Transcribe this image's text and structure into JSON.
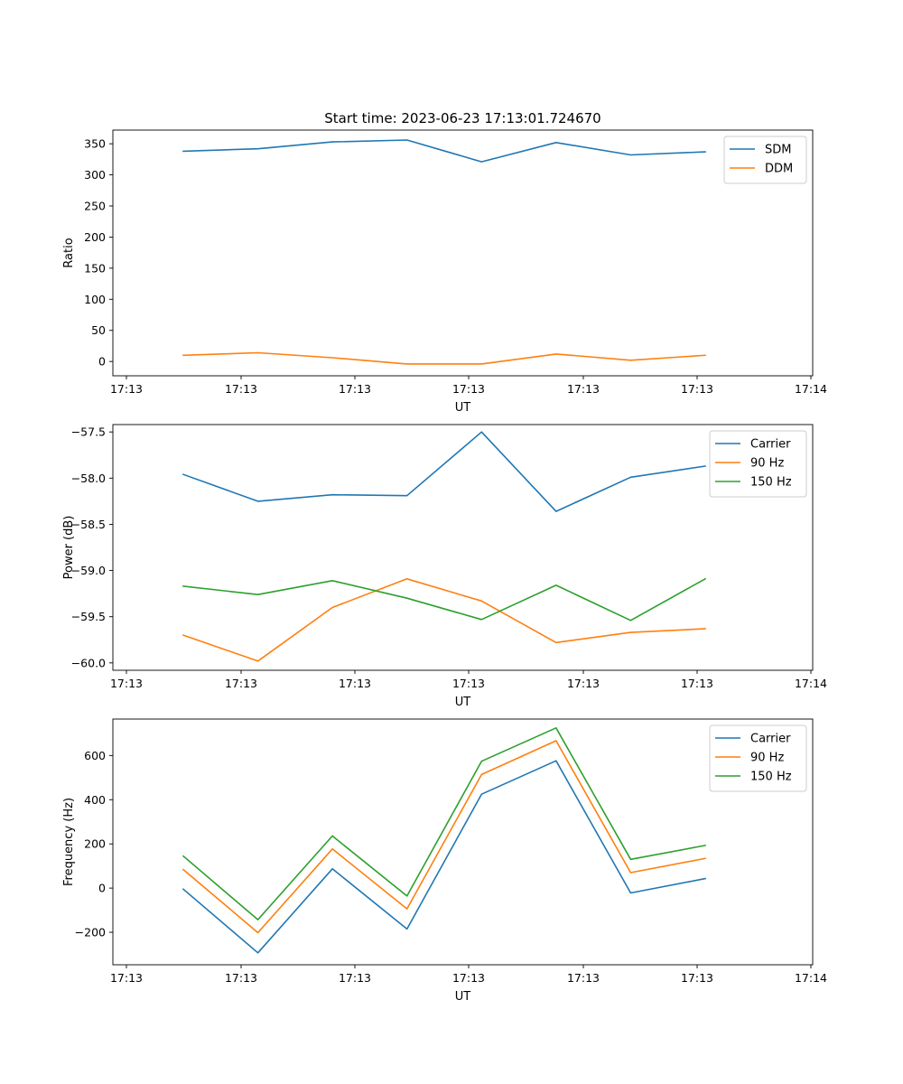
{
  "figure": {
    "title": "Start time: 2023-06-23 17:13:01.724670"
  },
  "chart_data": [
    {
      "type": "line",
      "title": "Start time: 2023-06-23 17:13:01.724670",
      "xlabel": "UT",
      "ylabel": "Ratio",
      "x_tick_labels": [
        "17:13",
        "17:13",
        "17:13",
        "17:13",
        "17:13",
        "17:13",
        "17:14"
      ],
      "x_points": 8,
      "ylim": [
        -23,
        372
      ],
      "y_ticks": [
        0,
        50,
        100,
        150,
        200,
        250,
        300,
        350
      ],
      "y_tick_labels": [
        "0",
        "50",
        "100",
        "150",
        "200",
        "250",
        "300",
        "350"
      ],
      "grid": false,
      "legend_position": "top-right",
      "series": [
        {
          "name": "SDM",
          "color": "#1f77b4",
          "values": [
            338,
            342,
            353,
            356,
            321,
            352,
            332,
            337
          ]
        },
        {
          "name": "DDM",
          "color": "#ff7f0e",
          "values": [
            10,
            14,
            6,
            -4,
            -4,
            12,
            2,
            10
          ]
        }
      ]
    },
    {
      "type": "line",
      "title": "",
      "xlabel": "UT",
      "ylabel": "Power (dB)",
      "x_tick_labels": [
        "17:13",
        "17:13",
        "17:13",
        "17:13",
        "17:13",
        "17:13",
        "17:14"
      ],
      "x_points": 8,
      "ylim": [
        -60.08,
        -57.42
      ],
      "y_ticks": [
        -60.0,
        -59.5,
        -59.0,
        -58.5,
        -58.0,
        -57.5
      ],
      "y_tick_labels": [
        "−60.0",
        "−59.5",
        "−59.0",
        "−58.5",
        "−58.0",
        "−57.5"
      ],
      "grid": false,
      "legend_position": "top-right",
      "series": [
        {
          "name": "Carrier",
          "color": "#1f77b4",
          "values": [
            -57.96,
            -58.25,
            -58.18,
            -58.19,
            -57.5,
            -58.36,
            -57.99,
            -57.87
          ]
        },
        {
          "name": "90 Hz",
          "color": "#ff7f0e",
          "values": [
            -59.7,
            -59.98,
            -59.4,
            -59.09,
            -59.33,
            -59.78,
            -59.67,
            -59.63
          ]
        },
        {
          "name": "150 Hz",
          "color": "#2ca02c",
          "values": [
            -59.17,
            -59.26,
            -59.11,
            -59.3,
            -59.53,
            -59.16,
            -59.54,
            -59.09
          ]
        }
      ]
    },
    {
      "type": "line",
      "title": "",
      "xlabel": "UT",
      "ylabel": "Frequency (Hz)",
      "x_tick_labels": [
        "17:13",
        "17:13",
        "17:13",
        "17:13",
        "17:13",
        "17:13",
        "17:14"
      ],
      "x_points": 8,
      "ylim": [
        -347,
        765
      ],
      "y_ticks": [
        -200,
        0,
        200,
        400,
        600
      ],
      "y_tick_labels": [
        "−200",
        "0",
        "200",
        "400",
        "600"
      ],
      "grid": false,
      "legend_position": "top-right",
      "series": [
        {
          "name": "Carrier",
          "color": "#1f77b4",
          "values": [
            -5,
            -293,
            87,
            -185,
            425,
            576,
            -22,
            43
          ]
        },
        {
          "name": "90 Hz",
          "color": "#ff7f0e",
          "values": [
            84,
            -202,
            177,
            -94,
            514,
            667,
            70,
            134
          ]
        },
        {
          "name": "150 Hz",
          "color": "#2ca02c",
          "values": [
            145,
            -143,
            236,
            -36,
            574,
            725,
            130,
            193
          ]
        }
      ]
    }
  ]
}
